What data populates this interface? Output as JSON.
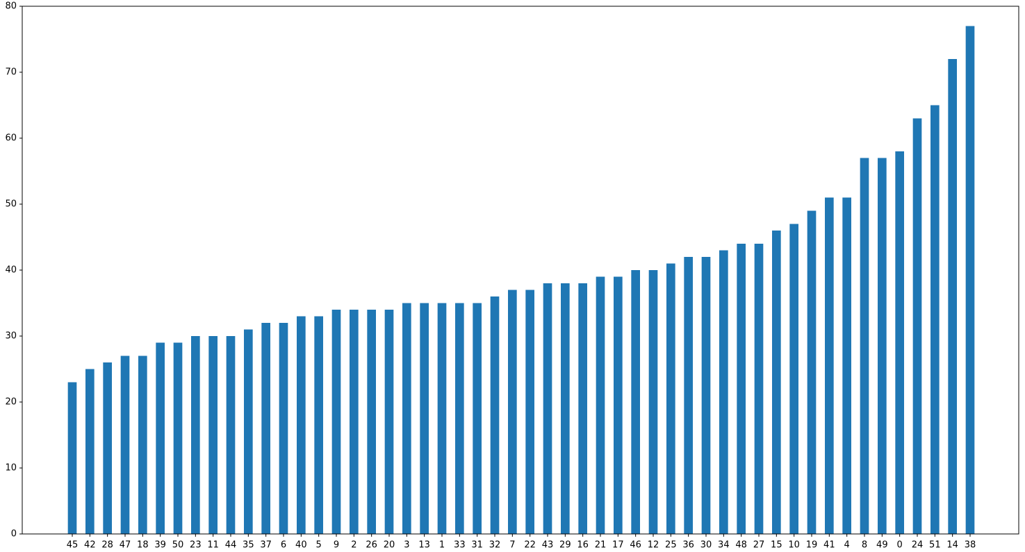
{
  "chart_data": {
    "type": "bar",
    "categories": [
      "45",
      "42",
      "28",
      "47",
      "18",
      "39",
      "50",
      "23",
      "11",
      "44",
      "35",
      "37",
      "6",
      "40",
      "5",
      "9",
      "2",
      "26",
      "20",
      "3",
      "13",
      "1",
      "33",
      "31",
      "32",
      "7",
      "22",
      "43",
      "29",
      "16",
      "21",
      "17",
      "46",
      "12",
      "25",
      "36",
      "30",
      "34",
      "48",
      "27",
      "15",
      "10",
      "19",
      "41",
      "4",
      "8",
      "49",
      "0",
      "24",
      "51",
      "14",
      "38"
    ],
    "values": [
      23,
      25,
      26,
      27,
      27,
      29,
      29,
      30,
      30,
      30,
      31,
      32,
      32,
      33,
      33,
      34,
      34,
      34,
      34,
      35,
      35,
      35,
      35,
      35,
      36,
      37,
      37,
      38,
      38,
      38,
      39,
      39,
      40,
      40,
      41,
      42,
      42,
      43,
      44,
      44,
      46,
      47,
      49,
      51,
      51,
      57,
      57,
      58,
      63,
      65,
      72,
      77
    ],
    "color": "#1f77b4",
    "ylim": [
      0,
      80
    ],
    "yticks": [
      0,
      10,
      20,
      30,
      40,
      50,
      60,
      70,
      80
    ],
    "grid": false
  }
}
